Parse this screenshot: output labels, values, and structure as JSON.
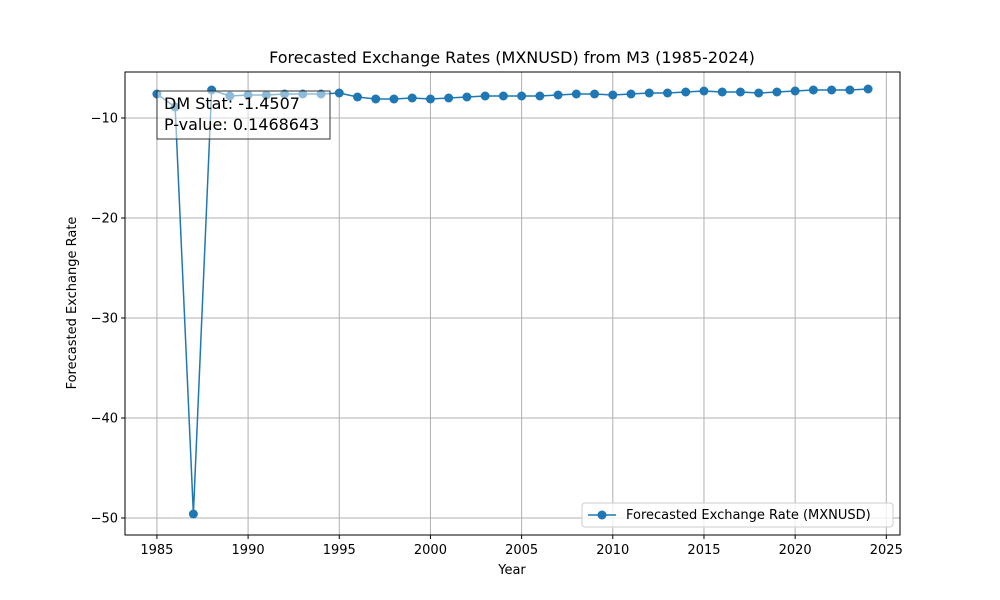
{
  "chart_data": {
    "type": "line",
    "title": "Forecasted Exchange Rates (MXNUSD) from M3 (1985-2024)",
    "xlabel": "Year",
    "ylabel": "Forecasted Exchange Rate",
    "xlim": [
      1983.25,
      2025.75
    ],
    "ylim": [
      -51.7,
      -5.4
    ],
    "xticks": [
      1985,
      1990,
      1995,
      2000,
      2005,
      2010,
      2015,
      2020,
      2025
    ],
    "yticks": [
      -50,
      -40,
      -30,
      -20,
      -10
    ],
    "ytick_labels": [
      "−50",
      "−40",
      "−30",
      "−20",
      "−10"
    ],
    "grid": true,
    "legend_position": "lower right",
    "colors": {
      "series": "#1f77b4"
    },
    "series": [
      {
        "name": "Forecasted Exchange Rate (MXNUSD)",
        "x": [
          1985,
          1986,
          1987,
          1988,
          1989,
          1990,
          1991,
          1992,
          1993,
          1994,
          1995,
          1996,
          1997,
          1998,
          1999,
          2000,
          2001,
          2002,
          2003,
          2004,
          2005,
          2006,
          2007,
          2008,
          2009,
          2010,
          2011,
          2012,
          2013,
          2014,
          2015,
          2016,
          2017,
          2018,
          2019,
          2020,
          2021,
          2022,
          2023,
          2024
        ],
        "y": [
          -7.6,
          -8.9,
          -49.6,
          -7.2,
          -7.8,
          -7.7,
          -7.7,
          -7.6,
          -7.6,
          -7.6,
          -7.5,
          -7.9,
          -8.1,
          -8.1,
          -8.0,
          -8.1,
          -8.0,
          -7.9,
          -7.8,
          -7.8,
          -7.8,
          -7.8,
          -7.7,
          -7.6,
          -7.6,
          -7.7,
          -7.6,
          -7.5,
          -7.5,
          -7.4,
          -7.3,
          -7.4,
          -7.4,
          -7.5,
          -7.4,
          -7.3,
          -7.2,
          -7.2,
          -7.2,
          -7.1
        ]
      }
    ],
    "annotation": {
      "line1": "DM Stat: -1.4507",
      "line2": "P-value: 0.1468643"
    }
  }
}
